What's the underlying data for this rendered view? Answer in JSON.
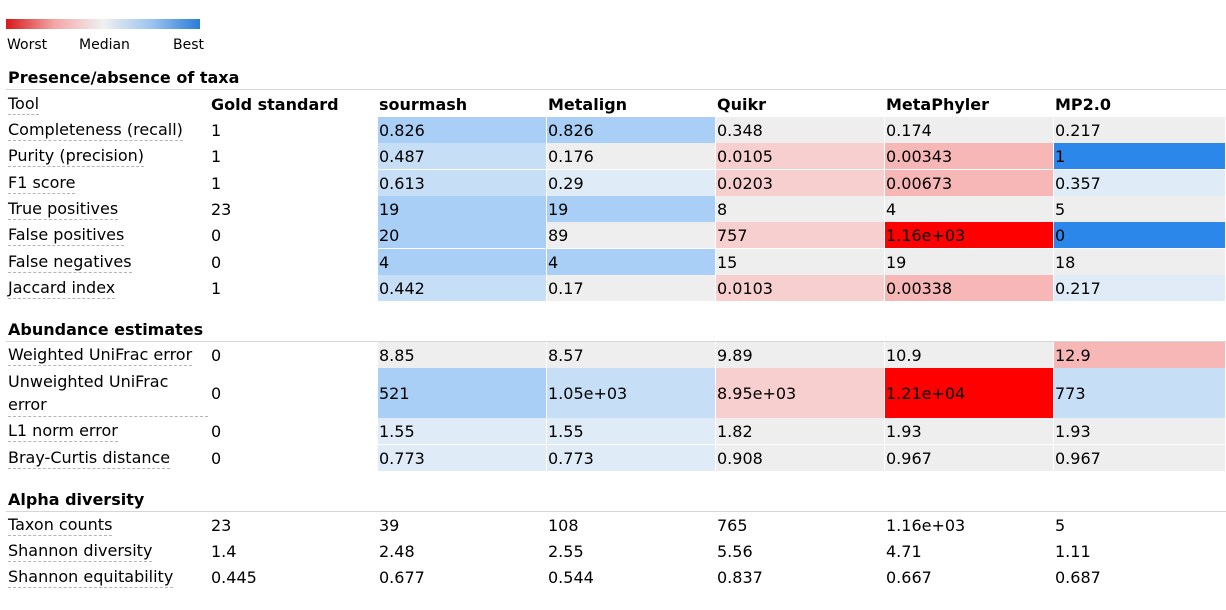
{
  "legend": {
    "worst_label": "Worst",
    "median_label": "Median",
    "best_label": "Best",
    "colors": [
      "#d7191c",
      "#f0f0f0",
      "#2b7bd9"
    ]
  },
  "sections": {
    "presence": {
      "title": "Presence/absence of taxa"
    },
    "abundance": {
      "title": "Abundance estimates"
    },
    "alpha": {
      "title": "Alpha diversity"
    }
  },
  "header": {
    "tool_label": "Tool",
    "gold_label": "Gold standard",
    "tools": [
      "sourmash",
      "Metalign",
      "Quikr",
      "MetaPhyler",
      "MP2.0"
    ]
  },
  "colors": {
    "best": "#2b88ea",
    "good": "#a9cff7",
    "fair": "#c6dff7",
    "slight": "#dfebf7",
    "neutral": "#eeeeee",
    "bad_light": "#f7cfcf",
    "bad": "#f7b7b7",
    "worst": "#ff0000"
  },
  "presence_rows": [
    {
      "label": "Completeness (recall)",
      "gold": "1",
      "cells": [
        {
          "v": "0.826",
          "c": "good"
        },
        {
          "v": "0.826",
          "c": "good"
        },
        {
          "v": "0.348",
          "c": "neutral"
        },
        {
          "v": "0.174",
          "c": "neutral"
        },
        {
          "v": "0.217",
          "c": "neutral"
        }
      ]
    },
    {
      "label": "Purity (precision)",
      "gold": "1",
      "cells": [
        {
          "v": "0.487",
          "c": "fair"
        },
        {
          "v": "0.176",
          "c": "neutral"
        },
        {
          "v": "0.0105",
          "c": "bad_light"
        },
        {
          "v": "0.00343",
          "c": "bad"
        },
        {
          "v": "1",
          "c": "best"
        }
      ]
    },
    {
      "label": "F1 score",
      "gold": "1",
      "cells": [
        {
          "v": "0.613",
          "c": "fair"
        },
        {
          "v": "0.29",
          "c": "slight"
        },
        {
          "v": "0.0203",
          "c": "bad_light"
        },
        {
          "v": "0.00673",
          "c": "bad"
        },
        {
          "v": "0.357",
          "c": "slight"
        }
      ]
    },
    {
      "label": "True positives",
      "gold": "23",
      "cells": [
        {
          "v": "19",
          "c": "good"
        },
        {
          "v": "19",
          "c": "good"
        },
        {
          "v": "8",
          "c": "neutral"
        },
        {
          "v": "4",
          "c": "neutral"
        },
        {
          "v": "5",
          "c": "neutral"
        }
      ]
    },
    {
      "label": "False positives",
      "gold": "0",
      "cells": [
        {
          "v": "20",
          "c": "good"
        },
        {
          "v": "89",
          "c": "neutral"
        },
        {
          "v": "757",
          "c": "bad_light"
        },
        {
          "v": "1.16e+03",
          "c": "worst"
        },
        {
          "v": "0",
          "c": "best"
        }
      ]
    },
    {
      "label": "False negatives",
      "gold": "0",
      "cells": [
        {
          "v": "4",
          "c": "good"
        },
        {
          "v": "4",
          "c": "good"
        },
        {
          "v": "15",
          "c": "neutral"
        },
        {
          "v": "19",
          "c": "neutral"
        },
        {
          "v": "18",
          "c": "neutral"
        }
      ]
    },
    {
      "label": "Jaccard index",
      "gold": "1",
      "cells": [
        {
          "v": "0.442",
          "c": "fair"
        },
        {
          "v": "0.17",
          "c": "neutral"
        },
        {
          "v": "0.0103",
          "c": "bad_light"
        },
        {
          "v": "0.00338",
          "c": "bad"
        },
        {
          "v": "0.217",
          "c": "slight"
        }
      ]
    }
  ],
  "abundance_rows": [
    {
      "label": "Weighted UniFrac error",
      "gold": "0",
      "cells": [
        {
          "v": "8.85",
          "c": "neutral"
        },
        {
          "v": "8.57",
          "c": "neutral"
        },
        {
          "v": "9.89",
          "c": "neutral"
        },
        {
          "v": "10.9",
          "c": "neutral"
        },
        {
          "v": "12.9",
          "c": "bad"
        }
      ]
    },
    {
      "label": "Unweighted UniFrac error",
      "gold": "0",
      "cells": [
        {
          "v": "521",
          "c": "good"
        },
        {
          "v": "1.05e+03",
          "c": "fair"
        },
        {
          "v": "8.95e+03",
          "c": "bad_light"
        },
        {
          "v": "1.21e+04",
          "c": "worst"
        },
        {
          "v": "773",
          "c": "fair"
        }
      ]
    },
    {
      "label": "L1 norm error",
      "gold": "0",
      "cells": [
        {
          "v": "1.55",
          "c": "slight"
        },
        {
          "v": "1.55",
          "c": "slight"
        },
        {
          "v": "1.82",
          "c": "neutral"
        },
        {
          "v": "1.93",
          "c": "neutral"
        },
        {
          "v": "1.93",
          "c": "neutral"
        }
      ]
    },
    {
      "label": "Bray-Curtis distance",
      "gold": "0",
      "cells": [
        {
          "v": "0.773",
          "c": "slight"
        },
        {
          "v": "0.773",
          "c": "slight"
        },
        {
          "v": "0.908",
          "c": "neutral"
        },
        {
          "v": "0.967",
          "c": "neutral"
        },
        {
          "v": "0.967",
          "c": "neutral"
        }
      ]
    }
  ],
  "alpha_rows": [
    {
      "label": "Taxon counts",
      "gold": "23",
      "values": [
        "39",
        "108",
        "765",
        "1.16e+03",
        "5"
      ]
    },
    {
      "label": "Shannon diversity",
      "gold": "1.4",
      "values": [
        "2.48",
        "2.55",
        "5.56",
        "4.71",
        "1.11"
      ]
    },
    {
      "label": "Shannon equitability",
      "gold": "0.445",
      "values": [
        "0.677",
        "0.544",
        "0.837",
        "0.667",
        "0.687"
      ]
    }
  ]
}
